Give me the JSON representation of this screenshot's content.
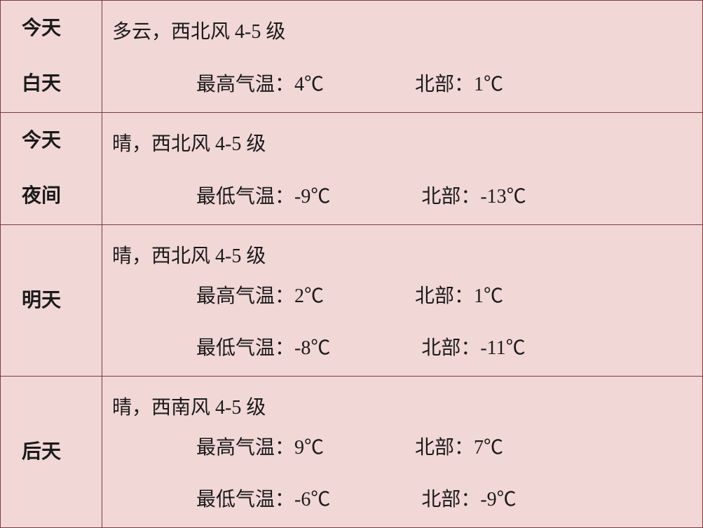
{
  "table": {
    "background_color": "#f2d7d7",
    "border_color": "#7a3b3b",
    "text_color": "#1a1a1a",
    "period_font_weight": "700",
    "font_size_pt": 21,
    "rows": [
      {
        "period_line1": "今天",
        "period_line2": "白天",
        "condition": "多云，西北风 4-5 级",
        "temps": [
          {
            "label": "最高气温：4℃",
            "north": "北部：1℃"
          }
        ]
      },
      {
        "period_line1": "今天",
        "period_line2": "夜间",
        "condition": "晴，西北风 4-5 级",
        "temps": [
          {
            "label": "最低气温：-9℃",
            "north": "北部：-13℃"
          }
        ]
      },
      {
        "period_line1": "明天",
        "period_line2": "",
        "condition": "晴，西北风 4-5 级",
        "temps": [
          {
            "label": "最高气温：2℃",
            "north": "北部：1℃"
          },
          {
            "label": "最低气温：-8℃",
            "north": "北部：-11℃"
          }
        ]
      },
      {
        "period_line1": "后天",
        "period_line2": "",
        "condition": "晴，西南风 4-5 级",
        "temps": [
          {
            "label": "最高气温：9℃",
            "north": "北部：7℃"
          },
          {
            "label": "最低气温：-6℃",
            "north": "北部：-9℃"
          }
        ]
      }
    ]
  }
}
